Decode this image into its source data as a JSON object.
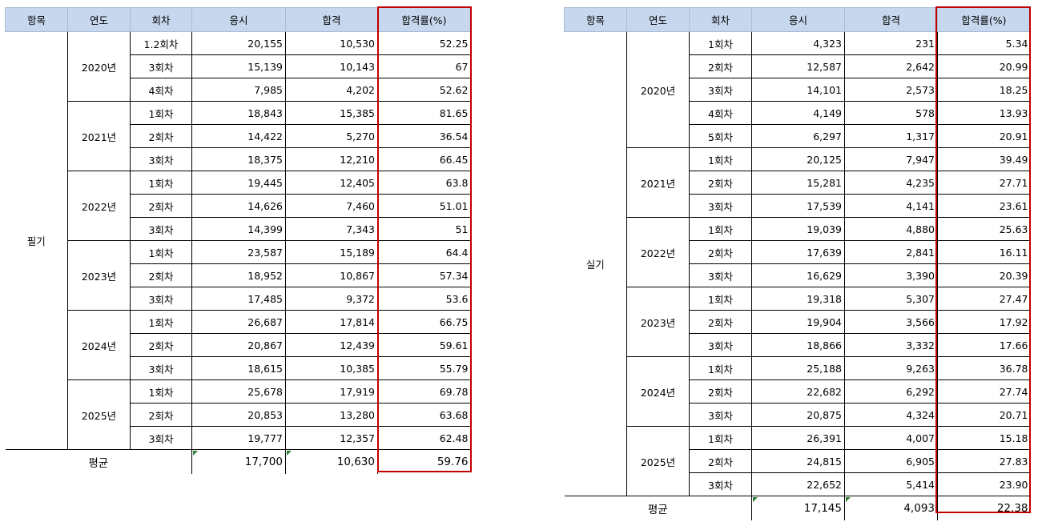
{
  "left": {
    "headers": [
      "항목",
      "연도",
      "회차",
      "응시",
      "합격",
      "합격률(%)"
    ],
    "item": "필기",
    "groups": [
      {
        "year": "2020년",
        "rows": [
          [
            "1.2회차",
            "20,155",
            "10,530",
            "52.25"
          ],
          [
            "3회차",
            "15,139",
            "10,143",
            "67"
          ],
          [
            "4회차",
            "7,985",
            "4,202",
            "52.62"
          ]
        ]
      },
      {
        "year": "2021년",
        "rows": [
          [
            "1회차",
            "18,843",
            "15,385",
            "81.65"
          ],
          [
            "2회차",
            "14,422",
            "5,270",
            "36.54"
          ],
          [
            "3회차",
            "18,375",
            "12,210",
            "66.45"
          ]
        ]
      },
      {
        "year": "2022년",
        "rows": [
          [
            "1회차",
            "19,445",
            "12,405",
            "63.8"
          ],
          [
            "2회차",
            "14,626",
            "7,460",
            "51.01"
          ],
          [
            "3회차",
            "14,399",
            "7,343",
            "51"
          ]
        ]
      },
      {
        "year": "2023년",
        "rows": [
          [
            "1회차",
            "23,587",
            "15,189",
            "64.4"
          ],
          [
            "2회차",
            "18,952",
            "10,867",
            "57.34"
          ],
          [
            "3회차",
            "17,485",
            "9,372",
            "53.6"
          ]
        ]
      },
      {
        "year": "2024년",
        "rows": [
          [
            "1회차",
            "26,687",
            "17,814",
            "66.75"
          ],
          [
            "2회차",
            "20,867",
            "12,439",
            "59.61"
          ],
          [
            "3회차",
            "18,615",
            "10,385",
            "55.79"
          ]
        ]
      },
      {
        "year": "2025년",
        "rows": [
          [
            "1회차",
            "25,678",
            "17,919",
            "69.78"
          ],
          [
            "2회차",
            "20,853",
            "13,280",
            "63.68"
          ],
          [
            "3회차",
            "19,777",
            "12,357",
            "62.48"
          ]
        ]
      }
    ],
    "average": {
      "label": "평균",
      "applicants": "17,700",
      "passers": "10,630",
      "rate": "59.76"
    }
  },
  "right": {
    "headers": [
      "항목",
      "연도",
      "회차",
      "응시",
      "합격",
      "합격률(%)"
    ],
    "item": "실기",
    "groups": [
      {
        "year": "2020년",
        "rows": [
          [
            "1회차",
            "4,323",
            "231",
            "5.34"
          ],
          [
            "2회차",
            "12,587",
            "2,642",
            "20.99"
          ],
          [
            "3회차",
            "14,101",
            "2,573",
            "18.25"
          ],
          [
            "4회차",
            "4,149",
            "578",
            "13.93"
          ],
          [
            "5회차",
            "6,297",
            "1,317",
            "20.91"
          ]
        ]
      },
      {
        "year": "2021년",
        "rows": [
          [
            "1회차",
            "20,125",
            "7,947",
            "39.49"
          ],
          [
            "2회차",
            "15,281",
            "4,235",
            "27.71"
          ],
          [
            "3회차",
            "17,539",
            "4,141",
            "23.61"
          ]
        ]
      },
      {
        "year": "2022년",
        "rows": [
          [
            "1회차",
            "19,039",
            "4,880",
            "25.63"
          ],
          [
            "2회차",
            "17,639",
            "2,841",
            "16.11"
          ],
          [
            "3회차",
            "16,629",
            "3,390",
            "20.39"
          ]
        ]
      },
      {
        "year": "2023년",
        "rows": [
          [
            "1회차",
            "19,318",
            "5,307",
            "27.47"
          ],
          [
            "2회차",
            "19,904",
            "3,566",
            "17.92"
          ],
          [
            "3회차",
            "18,866",
            "3,332",
            "17.66"
          ]
        ]
      },
      {
        "year": "2024년",
        "rows": [
          [
            "1회차",
            "25,188",
            "9,263",
            "36.78"
          ],
          [
            "2회차",
            "22,682",
            "6,292",
            "27.74"
          ],
          [
            "3회차",
            "20,875",
            "4,324",
            "20.71"
          ]
        ]
      },
      {
        "year": "2025년",
        "rows": [
          [
            "1회차",
            "26,391",
            "4,007",
            "15.18"
          ],
          [
            "2회차",
            "24,815",
            "6,905",
            "27.83"
          ],
          [
            "3회차",
            "22,652",
            "5,414",
            "23.90"
          ]
        ]
      }
    ],
    "average": {
      "label": "평균",
      "applicants": "17,145",
      "passers": "4,093",
      "rate": "22.38"
    }
  },
  "colors": {
    "header_bg": "#c7d8ee",
    "highlight": "#c00000",
    "marker": "#2e7d32"
  }
}
